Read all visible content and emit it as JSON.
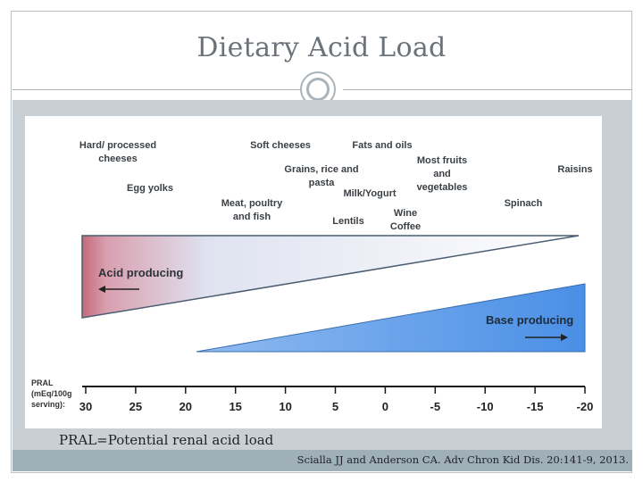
{
  "slide": {
    "title": "Dietary Acid Load",
    "caption": "PRAL=Potential renal acid load",
    "citation": "Scialla JJ and Anderson CA. Adv Chron Kid Dis. 20:141-9, 2013."
  },
  "figure": {
    "foods": {
      "hard_cheeses": "Hard/ processed cheeses",
      "egg_yolks": "Egg yolks",
      "meat": "Meat, poultry and fish",
      "soft_cheeses": "Soft cheeses",
      "grains": "Grains, rice and pasta",
      "lentils": "Lentils",
      "fats_oils": "Fats and oils",
      "milk_yogurt": "Milk/Yogurt",
      "wine_coffee": "Wine Coffee",
      "fruits_veg": "Most fruits and vegetables",
      "spinach": "Spinach",
      "raisins": "Raisins"
    },
    "acid_label": "Acid producing",
    "base_label": "Base producing",
    "pral_label": [
      "PRAL",
      "(mEq/100g",
      "serving):"
    ],
    "scale_ticks": [
      "30",
      "25",
      "20",
      "15",
      "10",
      "5",
      "0",
      "-5",
      "-10",
      "-15",
      "-20"
    ],
    "colors": {
      "acid_edge": "#c46a78",
      "base_fill": "#5b9be8",
      "axis": "#1a1a1a"
    }
  }
}
